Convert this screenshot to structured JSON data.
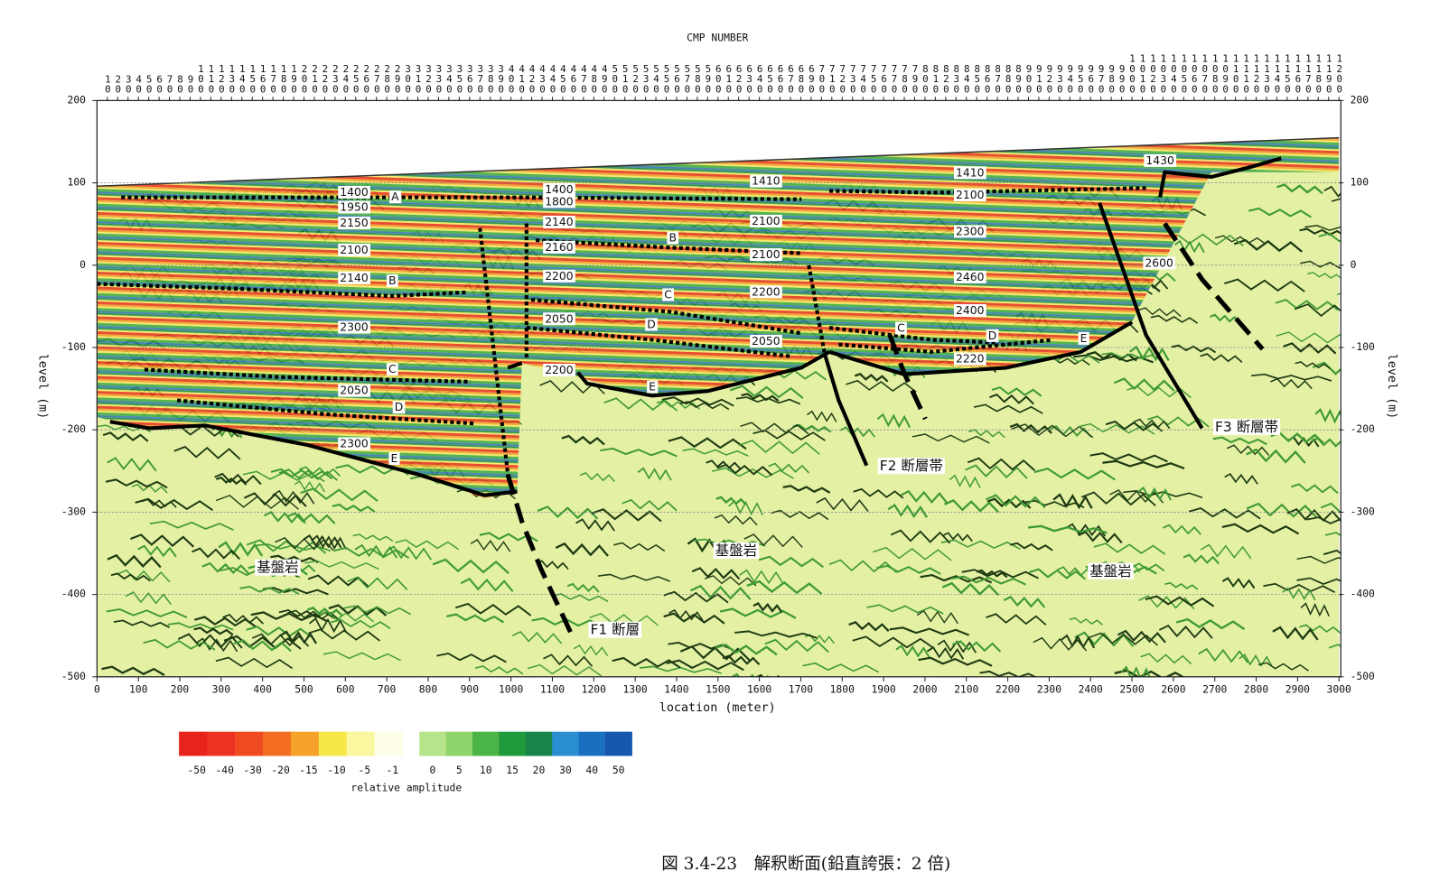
{
  "chart_data": {
    "type": "seismic-section",
    "title": "CMP NUMBER",
    "x_label": "location (meter)",
    "y_label": "level (m)",
    "xlim": [
      0,
      3000
    ],
    "ylim": [
      -500,
      200
    ],
    "xticks": [
      0,
      100,
      200,
      300,
      400,
      500,
      600,
      700,
      800,
      900,
      1000,
      1100,
      1200,
      1300,
      1400,
      1500,
      1600,
      1700,
      1800,
      1900,
      2000,
      2100,
      2200,
      2300,
      2400,
      2500,
      2600,
      2700,
      2800,
      2900,
      3000
    ],
    "yticks": [
      -500,
      -400,
      -300,
      -200,
      -100,
      0,
      100,
      200
    ],
    "grid": true,
    "cmp_ticks": [
      10,
      20,
      30,
      40,
      50,
      60,
      70,
      80,
      90,
      100,
      110,
      120,
      130,
      140,
      150,
      160,
      170,
      180,
      190,
      200,
      210,
      220,
      230,
      240,
      250,
      260,
      270,
      280,
      290,
      300,
      310,
      320,
      330,
      340,
      350,
      360,
      370,
      380,
      390,
      400,
      410,
      420,
      430,
      440,
      450,
      460,
      470,
      480,
      490,
      500,
      510,
      520,
      530,
      540,
      550,
      560,
      570,
      580,
      590,
      600,
      610,
      620,
      630,
      640,
      650,
      660,
      670,
      680,
      690,
      700,
      710,
      720,
      730,
      740,
      750,
      760,
      770,
      780,
      790,
      800,
      810,
      820,
      830,
      840,
      850,
      860,
      870,
      880,
      890,
      900,
      910,
      920,
      930,
      940,
      950,
      960,
      970,
      980,
      990,
      1000,
      1010,
      1020,
      1030,
      1040,
      1050,
      1060,
      1070,
      1080,
      1090,
      1100,
      1110,
      1120,
      1130,
      1140,
      1150,
      1160,
      1170,
      1180,
      1190,
      1200
    ],
    "annotations": [
      "1400",
      "A",
      "1950",
      "2150",
      "2100",
      "2140",
      "B",
      "2300",
      "C",
      "2050",
      "D",
      "2300",
      "E",
      "1400",
      "1800",
      "2140",
      "2160",
      "B",
      "2200",
      "C",
      "2050",
      "D",
      "2200",
      "E",
      "1410",
      "2100",
      "2100",
      "2200",
      "2050",
      "1410",
      "2100",
      "2300",
      "2460",
      "2400",
      "C",
      "D",
      "2220",
      "E",
      "1430",
      "2600",
      "F1 断層",
      "F2 断層帯",
      "F3 断層帯",
      "基盤岩",
      "基盤岩",
      "基盤岩"
    ],
    "colorbar": {
      "label": "relative amplitude",
      "ticks": [
        -50,
        -40,
        -30,
        -20,
        -15,
        -10,
        -5,
        -1,
        0,
        5,
        10,
        15,
        20,
        30,
        40,
        50
      ],
      "colors": [
        "#e8231c",
        "#ec3220",
        "#ef4a20",
        "#f36d22",
        "#f5a12a",
        "#f7e84a",
        "#faf7a0",
        "#fdfde8",
        "#b6e48a",
        "#8fd46a",
        "#4ab446",
        "#1f9a3c",
        "#17844a",
        "#2a8fd0",
        "#1b6fc0",
        "#1558ad"
      ]
    },
    "caption": "図 3.4-23　解釈断面(鉛直誇張：2 倍)"
  }
}
